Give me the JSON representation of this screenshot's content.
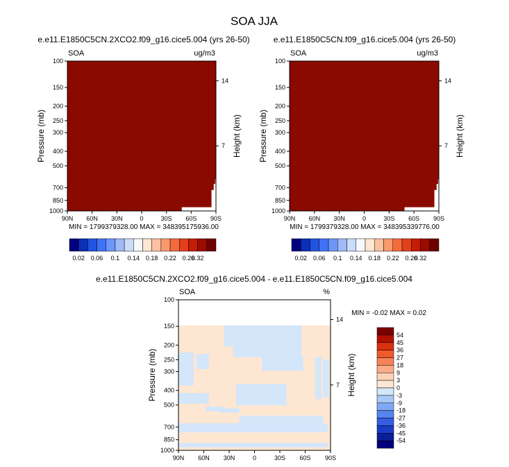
{
  "page_title": "SOA JJA",
  "colors": {
    "sat": "#8a0a00",
    "diff_pos": "#fde6d2",
    "diff_neg": "#d3e6fa",
    "border": "#000000"
  },
  "chart_data": [
    {
      "type": "heatmap",
      "title": "e.e11.E1850C5CN.2XCO2.f09_g16.cice5.004 (yrs 26-50)",
      "left_string": "SOA",
      "right_string": "ug/m3",
      "xlabel": "",
      "ylabel": "Pressure (mb)",
      "ylabel_right": "Height (km)",
      "x_ticks": [
        "90N",
        "60N",
        "30N",
        "0",
        "30S",
        "60S",
        "90S"
      ],
      "y_ticks": [
        100,
        150,
        200,
        250,
        300,
        400,
        500,
        700,
        850,
        1000
      ],
      "y_scale": "log",
      "ylim": [
        1000,
        100
      ],
      "height_ticks": [
        14,
        7
      ],
      "stats": "MIN = 1799379328.00   MAX = 348395175936.00",
      "field": "saturated (all values above 0.32)",
      "colorbar": {
        "orientation": "horizontal",
        "labels": [
          "0.02",
          "0.06",
          "0.1",
          "0.14",
          "0.18",
          "0.22",
          "0.26",
          "0.32"
        ],
        "colors": [
          "#00007f",
          "#0b2fb6",
          "#2154e2",
          "#3f73f5",
          "#6e96f9",
          "#9fbaf9",
          "#cadcf7",
          "#f5f9fb",
          "#fde6d2",
          "#fcc2a0",
          "#f99a6c",
          "#f36b3d",
          "#e2401a",
          "#c41c06",
          "#9c0a00",
          "#6e0000"
        ]
      }
    },
    {
      "type": "heatmap",
      "title": "e.e11.E1850C5CN.f09_g16.cice5.004 (yrs 26-50)",
      "left_string": "SOA",
      "right_string": "ug/m3",
      "xlabel": "",
      "ylabel": "Pressure (mb)",
      "ylabel_right": "Height (km)",
      "x_ticks": [
        "90N",
        "60N",
        "30N",
        "0",
        "30S",
        "60S",
        "90S"
      ],
      "y_ticks": [
        100,
        150,
        200,
        250,
        300,
        400,
        500,
        700,
        850,
        1000
      ],
      "y_scale": "log",
      "ylim": [
        1000,
        100
      ],
      "height_ticks": [
        14,
        7
      ],
      "stats": "MIN = 1799379328.00   MAX = 348395339776.00",
      "field": "saturated (all values above 0.32)",
      "colorbar": {
        "orientation": "horizontal",
        "labels": [
          "0.02",
          "0.06",
          "0.1",
          "0.14",
          "0.18",
          "0.22",
          "0.26",
          "0.32"
        ],
        "colors": [
          "#00007f",
          "#0b2fb6",
          "#2154e2",
          "#3f73f5",
          "#6e96f9",
          "#9fbaf9",
          "#cadcf7",
          "#f5f9fb",
          "#fde6d2",
          "#fcc2a0",
          "#f99a6c",
          "#f36b3d",
          "#e2401a",
          "#c41c06",
          "#9c0a00",
          "#6e0000"
        ]
      }
    },
    {
      "type": "heatmap",
      "title": "e.e11.E1850C5CN.2XCO2.f09_g16.cice5.004 - e.e11.E1850C5CN.f09_g16.cice5.004",
      "left_string": "SOA",
      "right_string": "%",
      "xlabel": "",
      "ylabel": "Pressure (mb)",
      "ylabel_right": "Height (km)",
      "x_ticks": [
        "90N",
        "60N",
        "30N",
        "0",
        "30S",
        "60S",
        "90S"
      ],
      "y_ticks": [
        100,
        150,
        200,
        250,
        300,
        400,
        500,
        700,
        850,
        1000
      ],
      "y_scale": "log",
      "ylim": [
        1000,
        100
      ],
      "height_ticks": [
        14,
        7
      ],
      "stats": "MIN =  -0.02   MAX =   0.02",
      "field": "mostly 0 to 3 %, patches of -3 to 0 %",
      "colorbar": {
        "orientation": "vertical",
        "labels": [
          "54",
          "45",
          "36",
          "27",
          "18",
          "9",
          "3",
          "0",
          "-3",
          "-9",
          "-18",
          "-27",
          "-36",
          "-45",
          "-54"
        ],
        "colors": [
          "#7a0000",
          "#b21000",
          "#d93010",
          "#f05a2c",
          "#f7825a",
          "#fcaa85",
          "#fdd3b8",
          "#fde6d2",
          "#d3e6fa",
          "#a9c8f8",
          "#7fa7f6",
          "#5684f1",
          "#345ee3",
          "#1a3bc6",
          "#0a1f99",
          "#00007f"
        ]
      }
    }
  ]
}
